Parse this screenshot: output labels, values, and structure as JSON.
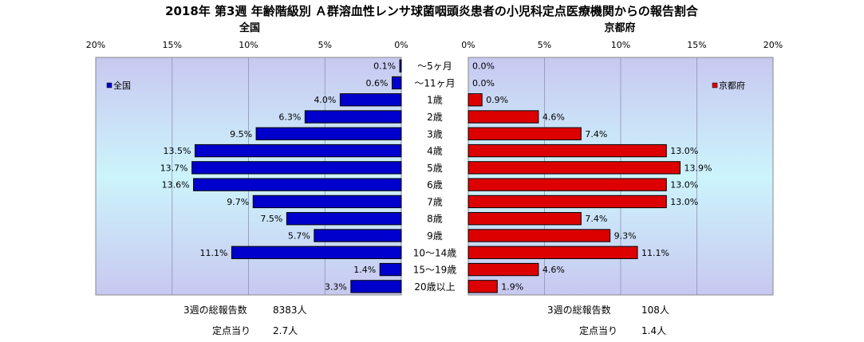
{
  "chart_data": {
    "type": "bar",
    "title": "2018年 第3週 年齢階級別 Ａ群溶血性レンサ球菌咽頭炎患者の小児科定点医療機関からの報告割合",
    "categories": [
      "～5ヶ月",
      "～11ヶ月",
      "1歳",
      "2歳",
      "3歳",
      "4歳",
      "5歳",
      "6歳",
      "7歳",
      "8歳",
      "9歳",
      "10～14歳",
      "15～19歳",
      "20歳以上"
    ],
    "panels": [
      {
        "label": "全国",
        "legend": "全国",
        "color": "#0000cc",
        "direction": "left",
        "xlim": [
          0,
          20
        ],
        "ticks": [
          "0%",
          "5%",
          "10%",
          "15%",
          "20%"
        ],
        "tick_values": [
          0,
          5,
          10,
          15,
          20
        ],
        "values": [
          0.1,
          0.6,
          4.0,
          6.3,
          9.5,
          13.5,
          13.7,
          13.6,
          9.7,
          7.5,
          5.7,
          11.1,
          1.4,
          3.3
        ],
        "value_labels": [
          "0.1%",
          "0.6%",
          "4.0%",
          "6.3%",
          "9.5%",
          "13.5%",
          "13.7%",
          "13.6%",
          "9.7%",
          "7.5%",
          "5.7%",
          "11.1%",
          "1.4%",
          "3.3%"
        ]
      },
      {
        "label": "京都府",
        "legend": "京都府",
        "color": "#dd0000",
        "direction": "right",
        "xlim": [
          0,
          20
        ],
        "ticks": [
          "0%",
          "5%",
          "10%",
          "15%",
          "20%"
        ],
        "tick_values": [
          0,
          5,
          10,
          15,
          20
        ],
        "values": [
          0.0,
          0.0,
          0.9,
          4.6,
          7.4,
          13.0,
          13.9,
          13.0,
          13.0,
          7.4,
          9.3,
          11.1,
          4.6,
          1.9
        ],
        "value_labels": [
          "0.0%",
          "0.0%",
          "0.9%",
          "4.6%",
          "7.4%",
          "13.0%",
          "13.9%",
          "13.0%",
          "13.0%",
          "7.4%",
          "9.3%",
          "11.1%",
          "4.6%",
          "1.9%"
        ]
      }
    ],
    "grid": true
  },
  "footer": {
    "left": [
      {
        "label": "3週の総報告数",
        "value": "8383人"
      },
      {
        "label": "定点当り",
        "value": "2.7人"
      }
    ],
    "right": [
      {
        "label": "3週の総報告数",
        "value": "108人"
      },
      {
        "label": "定点当り",
        "value": "1.4人"
      }
    ]
  }
}
